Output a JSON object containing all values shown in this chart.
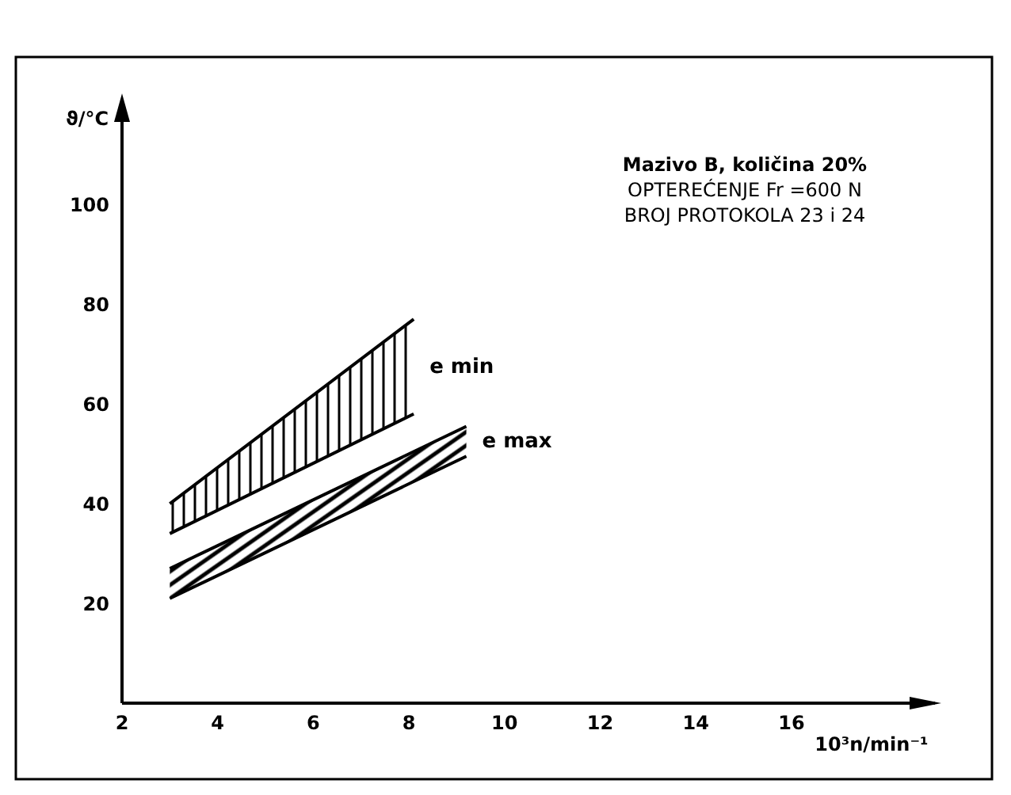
{
  "chart_data": {
    "type": "area",
    "xlabel": "10³n/min⁻¹",
    "ylabel": "ϑ/°C",
    "annotations": [
      "Mazivo B, količina 20%",
      "OPTEREĆENJE  Fr =600 N",
      "BROJ  PROTOKOLA 23 i 24"
    ],
    "series": [
      {
        "name": "e min",
        "color": "#000000",
        "x": [
          3,
          8.1
        ],
        "values": [
          40,
          77
        ]
      },
      {
        "type": "line",
        "color": "#000000",
        "x": [
          3,
          8.1
        ],
        "values": [
          34,
          58
        ]
      },
      {
        "name": "e max",
        "color": "#000000",
        "x": [
          3,
          9.2
        ],
        "values": [
          27,
          55.5
        ]
      },
      {
        "type": "line",
        "color": "#000000",
        "x": [
          3,
          9.2
        ],
        "values": [
          21,
          49.5
        ]
      }
    ],
    "xlim": [
      2,
      19
    ],
    "xticks": [
      2,
      4,
      6,
      8,
      10,
      12,
      14,
      16
    ],
    "ylim": [
      0,
      121
    ],
    "yticks": [
      20,
      40,
      60,
      80,
      100
    ],
    "grid": false
  }
}
